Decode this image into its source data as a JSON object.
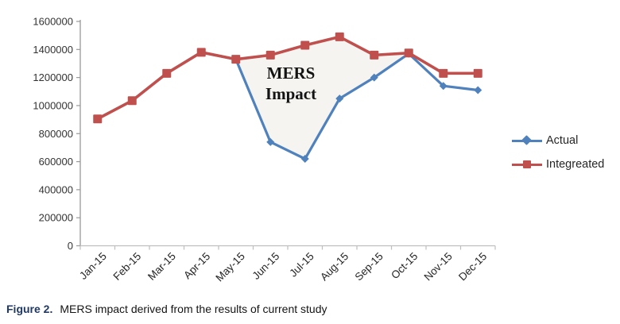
{
  "chart_data": {
    "type": "line",
    "categories": [
      "Jan-15",
      "Feb-15",
      "Mar-15",
      "Apr-15",
      "May-15",
      "Jun-15",
      "Jul-15",
      "Aug-15",
      "Sep-15",
      "Oct-15",
      "Nov-15",
      "Dec-15"
    ],
    "series": [
      {
        "name": "Actual",
        "color": "#4f81bd",
        "marker": "diamond",
        "values": [
          905000,
          1035000,
          1230000,
          1380000,
          1330000,
          740000,
          620000,
          1050000,
          1200000,
          1370000,
          1140000,
          1110000
        ]
      },
      {
        "name": "Integreated",
        "color": "#c0504d",
        "marker": "square",
        "values": [
          905000,
          1035000,
          1230000,
          1380000,
          1330000,
          1360000,
          1430000,
          1490000,
          1360000,
          1375000,
          1230000,
          1230000
        ]
      }
    ],
    "ylim": [
      0,
      1600000
    ],
    "ytick_step": 200000,
    "ytick_labels": [
      "0",
      "200000",
      "400000",
      "600000",
      "800000",
      "1000000",
      "1200000",
      "1400000",
      "1600000"
    ],
    "grid": false,
    "legend_position": "right",
    "annotation": {
      "line1": "MERS",
      "line2": "Impact"
    },
    "impact_region": {
      "start_index": 4,
      "end_index": 9,
      "upper_series": "Integreated",
      "lower_series": "Actual"
    }
  },
  "colors": {
    "actual": "#4f81bd",
    "integrated": "#c0504d",
    "impact_fill": "#f5f4f0",
    "axis_y": "#999999",
    "axis_x": "#bfbfbf",
    "tick_text": "#333333",
    "caption_label": "#1f3864"
  },
  "caption": {
    "label": "Figure 2.",
    "text": "MERS impact derived from the results of current study"
  }
}
